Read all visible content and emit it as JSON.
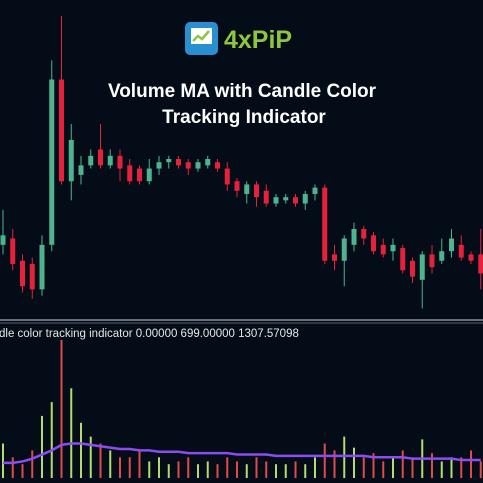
{
  "logo": {
    "text": "4xPiP"
  },
  "chart_data": {
    "type": "candlestick",
    "title": [
      "Volume MA with Candle Color",
      "Tracking Indicator"
    ],
    "open": [
      23,
      25,
      18,
      17,
      9,
      23,
      75,
      43,
      45,
      48,
      53,
      48,
      51,
      48,
      47,
      43,
      47,
      49,
      50,
      49,
      47,
      48,
      49,
      47,
      43,
      39,
      42,
      40,
      36,
      37,
      38,
      36,
      39,
      41,
      20,
      18,
      23,
      28,
      26,
      23,
      21,
      22,
      18,
      12,
      20,
      18,
      21,
      23,
      20,
      20
    ],
    "high": [
      34,
      28,
      20,
      19,
      26,
      81,
      95,
      61,
      51,
      53,
      61,
      53,
      53,
      50,
      48,
      50,
      51,
      51,
      51,
      50,
      50,
      51,
      50,
      49,
      44,
      43,
      43,
      42,
      39,
      39,
      39,
      40,
      42,
      42,
      23,
      26,
      30,
      29,
      27,
      25,
      25,
      23,
      19,
      21,
      23,
      25,
      28,
      26,
      21,
      28
    ],
    "low": [
      20,
      15,
      8,
      6,
      7,
      21,
      42,
      37,
      42,
      47,
      47,
      47,
      43,
      42,
      42,
      42,
      45,
      47,
      47,
      45,
      46,
      47,
      46,
      40,
      38,
      36,
      35,
      35,
      35,
      36,
      35,
      34,
      37,
      17,
      15,
      10,
      21,
      23,
      20,
      19,
      18,
      14,
      11,
      3,
      14,
      17,
      19,
      18,
      17,
      9
    ],
    "close": [
      26,
      17,
      10,
      9,
      23,
      75,
      43,
      56,
      48,
      51,
      48,
      51,
      47,
      43,
      43,
      47,
      49,
      50,
      48,
      47,
      49,
      50,
      47,
      42,
      40,
      42,
      38,
      36,
      38,
      38,
      36,
      39,
      41,
      18,
      18,
      25,
      28,
      25,
      21,
      20,
      23,
      15,
      13,
      20,
      16,
      21,
      25,
      19,
      18,
      14
    ],
    "ylim": [
      0,
      100
    ],
    "up_color": "#4fb38f",
    "down_color": "#e5213b",
    "volume": {
      "label": "dle color tracking indicator 0.00000 699.00000 1307.57098",
      "values": [
        25,
        15,
        10,
        20,
        45,
        55,
        100,
        65,
        40,
        30,
        25,
        20,
        15,
        15,
        20,
        12,
        15,
        10,
        12,
        15,
        10,
        12,
        10,
        15,
        12,
        10,
        15,
        12,
        10,
        10,
        12,
        10,
        15,
        25,
        20,
        30,
        22,
        15,
        18,
        12,
        15,
        20,
        15,
        28,
        18,
        12,
        15,
        15,
        20,
        12
      ],
      "ma": [
        11,
        11,
        12,
        14,
        17,
        20,
        24,
        25,
        25,
        24,
        23,
        22,
        21,
        21,
        20,
        20,
        19,
        19,
        19,
        18,
        18,
        18,
        18,
        18,
        17,
        17,
        17,
        17,
        16,
        16,
        16,
        16,
        16,
        16,
        16,
        16,
        16,
        16,
        15,
        15,
        15,
        15,
        14,
        14,
        14,
        14,
        14,
        13,
        13,
        13
      ],
      "ylim": [
        0,
        100
      ],
      "up_color": "#b5dc6e",
      "down_color": "#e24a4a",
      "ma_color": "#8b4cf2"
    }
  }
}
